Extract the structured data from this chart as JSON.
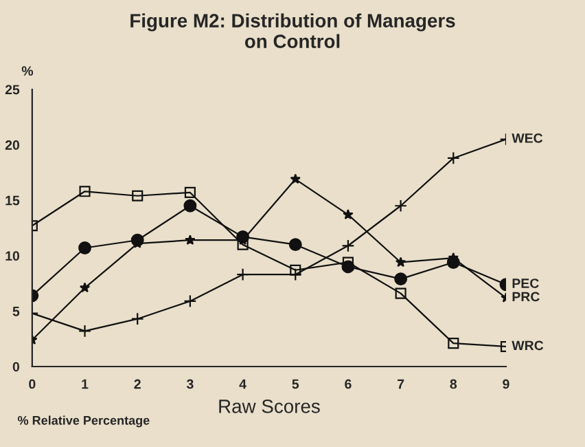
{
  "chart_data": {
    "type": "line",
    "title": "Figure M2: Distribution of Managers\non Control",
    "xlabel": "Raw Scores",
    "ylabel": "%",
    "annotations": [
      "% Relative Percentage"
    ],
    "x": [
      0,
      1,
      2,
      3,
      4,
      5,
      6,
      7,
      8,
      9
    ],
    "xlim": [
      0,
      9
    ],
    "xticks": [
      0,
      1,
      2,
      3,
      4,
      5,
      6,
      7,
      8,
      9
    ],
    "ylim": [
      0,
      25
    ],
    "yticks": [
      0,
      5,
      10,
      15,
      20,
      25
    ],
    "grid": false,
    "legend": false,
    "line_style": "solid",
    "series": [
      {
        "name": "WEC",
        "color": "#111111",
        "marker": "cross",
        "values": [
          4.8,
          3.2,
          4.3,
          5.9,
          8.3,
          8.3,
          10.9,
          14.5,
          18.8,
          20.5
        ]
      },
      {
        "name": "PEC",
        "color": "#111111",
        "marker": "circle",
        "values": [
          6.4,
          10.7,
          11.4,
          14.5,
          11.7,
          11.0,
          9.0,
          7.9,
          9.4,
          7.4
        ]
      },
      {
        "name": "PRC",
        "color": "#111111",
        "marker": "star",
        "values": [
          2.4,
          7.1,
          11.1,
          11.4,
          11.4,
          16.9,
          13.7,
          9.4,
          9.8,
          6.2
        ]
      },
      {
        "name": "WRC",
        "color": "#111111",
        "marker": "square",
        "values": [
          12.7,
          15.8,
          15.4,
          15.7,
          11.0,
          8.7,
          9.4,
          6.6,
          2.1,
          1.8
        ]
      }
    ]
  }
}
